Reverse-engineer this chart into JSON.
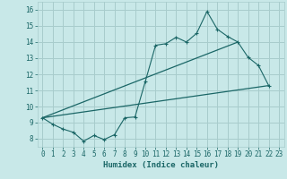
{
  "title": "",
  "xlabel": "Humidex (Indice chaleur)",
  "bg_color": "#c8e8e8",
  "grid_color": "#a8cccc",
  "line_color": "#1a6666",
  "xlim": [
    -0.5,
    23.5
  ],
  "ylim": [
    7.5,
    16.5
  ],
  "xticks": [
    0,
    1,
    2,
    3,
    4,
    5,
    6,
    7,
    8,
    9,
    10,
    11,
    12,
    13,
    14,
    15,
    16,
    17,
    18,
    19,
    20,
    21,
    22,
    23
  ],
  "yticks": [
    8,
    9,
    10,
    11,
    12,
    13,
    14,
    15,
    16
  ],
  "series1_x": [
    0,
    1,
    2,
    3,
    4,
    5,
    6,
    7,
    8,
    9,
    10,
    11,
    12,
    13,
    14,
    15,
    16,
    17,
    18,
    19,
    20,
    21,
    22
  ],
  "series1_y": [
    9.3,
    8.9,
    8.6,
    8.4,
    7.85,
    8.2,
    7.95,
    8.25,
    9.3,
    9.35,
    11.55,
    13.8,
    13.9,
    14.3,
    14.0,
    14.55,
    15.9,
    14.8,
    14.35,
    14.0,
    13.05,
    12.55,
    11.3
  ],
  "line2_x": [
    0,
    22
  ],
  "line2_y": [
    9.3,
    11.3
  ],
  "line3_x": [
    0,
    19
  ],
  "line3_y": [
    9.3,
    14.0
  ]
}
